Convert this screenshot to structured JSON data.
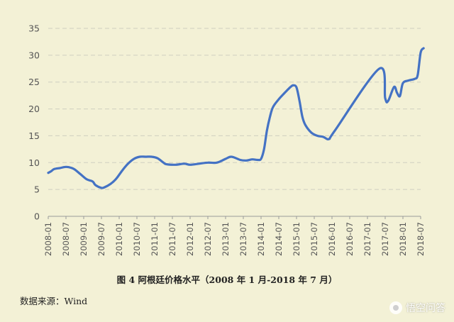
{
  "chart_data": {
    "type": "line",
    "y_ticks": [
      0,
      5,
      10,
      15,
      20,
      25,
      30,
      35
    ],
    "ylim": [
      0,
      35
    ],
    "x_tick_labels": [
      "2008-01",
      "2008-07",
      "2009-01",
      "2009-07",
      "2010-01",
      "2010-07",
      "2011-01",
      "2011-07",
      "2012-01",
      "2012-07",
      "2013-01",
      "2013-07",
      "2014-01",
      "2014-07",
      "2015-01",
      "2015-07",
      "2016-01",
      "2016-07",
      "2017-01",
      "2017-07",
      "2018-01",
      "2018-07"
    ],
    "grid": "horizontal dashed",
    "line_color": "#4472c4",
    "series": [
      {
        "points": [
          [
            "2008-01",
            8.1
          ],
          [
            "2008-02",
            8.4
          ],
          [
            "2008-03",
            8.8
          ],
          [
            "2008-05",
            9.0
          ],
          [
            "2008-07",
            9.2
          ],
          [
            "2008-09",
            9.0
          ],
          [
            "2008-10",
            8.7
          ],
          [
            "2008-12",
            7.8
          ],
          [
            "2009-02",
            6.9
          ],
          [
            "2009-04",
            6.5
          ],
          [
            "2009-05",
            5.8
          ],
          [
            "2009-07",
            5.3
          ],
          [
            "2009-08",
            5.4
          ],
          [
            "2009-10",
            6.0
          ],
          [
            "2009-12",
            7.0
          ],
          [
            "2010-02",
            8.5
          ],
          [
            "2010-04",
            9.8
          ],
          [
            "2010-06",
            10.7
          ],
          [
            "2010-08",
            11.1
          ],
          [
            "2010-10",
            11.1
          ],
          [
            "2010-12",
            11.1
          ],
          [
            "2011-02",
            10.8
          ],
          [
            "2011-04",
            10.0
          ],
          [
            "2011-05",
            9.7
          ],
          [
            "2011-08",
            9.6
          ],
          [
            "2011-11",
            9.8
          ],
          [
            "2012-01",
            9.6
          ],
          [
            "2012-04",
            9.8
          ],
          [
            "2012-07",
            10.0
          ],
          [
            "2012-10",
            10.0
          ],
          [
            "2013-01",
            10.7
          ],
          [
            "2013-03",
            11.1
          ],
          [
            "2013-06",
            10.5
          ],
          [
            "2013-08",
            10.4
          ],
          [
            "2013-10",
            10.6
          ],
          [
            "2013-12",
            10.5
          ],
          [
            "2014-01",
            10.7
          ],
          [
            "2014-02",
            12.5
          ],
          [
            "2014-03",
            16.0
          ],
          [
            "2014-04",
            18.5
          ],
          [
            "2014-05",
            20.3
          ],
          [
            "2014-07",
            21.8
          ],
          [
            "2014-09",
            23.0
          ],
          [
            "2014-11",
            24.1
          ],
          [
            "2014-12",
            24.4
          ],
          [
            "2015-01",
            24.0
          ],
          [
            "2015-02",
            21.5
          ],
          [
            "2015-03",
            18.5
          ],
          [
            "2015-04",
            17.0
          ],
          [
            "2015-06",
            15.6
          ],
          [
            "2015-08",
            15.0
          ],
          [
            "2015-10",
            14.8
          ],
          [
            "2015-12",
            14.4
          ],
          [
            "2016-02",
            16.0
          ],
          [
            "2017-05",
            27.5
          ],
          [
            "2017-07",
            22.0
          ],
          [
            "2017-08",
            21.5
          ],
          [
            "2017-10",
            24.1
          ],
          [
            "2017-11",
            23.0
          ],
          [
            "2017-12",
            22.4
          ],
          [
            "2018-01",
            24.8
          ],
          [
            "2018-03",
            25.3
          ],
          [
            "2018-05",
            25.6
          ],
          [
            "2018-06",
            26.3
          ],
          [
            "2018-07",
            30.5
          ],
          [
            "2018-08",
            31.3
          ]
        ]
      }
    ]
  },
  "caption": "图 4  阿根廷价格水平（2008 年 1 月-2018 年 7 月）",
  "source": "数据来源：Wind",
  "watermark": "悟空问答"
}
